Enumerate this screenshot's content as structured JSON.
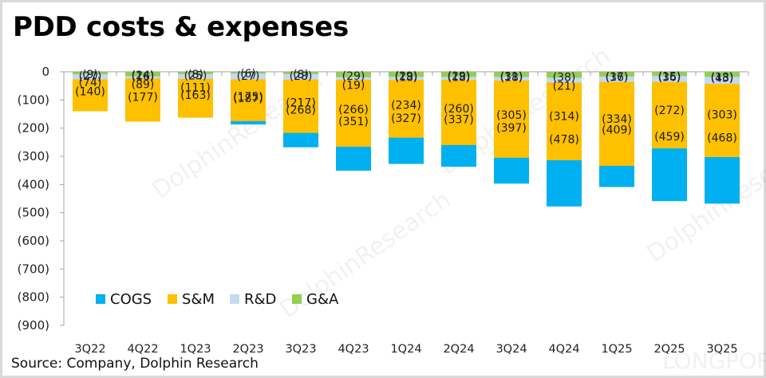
{
  "title": "PDD costs & expenses",
  "source": "Source: Company,  Dolphin Research",
  "watermarks": [
    "DolphinResearch",
    "LONGPORT"
  ],
  "chart_data": {
    "type": "bar",
    "stacked": true,
    "title": "PDD costs & expenses",
    "xlabel": "",
    "ylabel": "",
    "ylim": [
      -900,
      0
    ],
    "yticks": [
      0,
      -100,
      -200,
      -300,
      -400,
      -500,
      -600,
      -700,
      -800,
      -900
    ],
    "ytick_labels": [
      "0",
      "(100)",
      "(200)",
      "(300)",
      "(400)",
      "(500)",
      "(600)",
      "(700)",
      "(800)",
      "(900)"
    ],
    "grid": false,
    "legend_position": "bottom-left inside plot",
    "categories": [
      "3Q22",
      "4Q22",
      "1Q23",
      "2Q23",
      "3Q23",
      "4Q23",
      "1Q24",
      "2Q24",
      "3Q24",
      "4Q24",
      "1Q25",
      "2Q25",
      "3Q25"
    ],
    "series": [
      {
        "name": "COGS",
        "color": "#00b0f0",
        "values": [
          -74,
          -89,
          -111,
          -187,
          -268,
          -351,
          -327,
          -337,
          -397,
          -478,
          -409,
          -459,
          -468
        ]
      },
      {
        "name": "S&M",
        "color": "#ffc000",
        "values": [
          -140,
          -177,
          -163,
          -175,
          -217,
          -266,
          -234,
          -260,
          -305,
          -314,
          -334,
          -272,
          -303
        ]
      },
      {
        "name": "R&D",
        "color": "#c5d9f1",
        "values": [
          -27,
          -24,
          -25,
          -27,
          -28,
          -29,
          -29,
          -29,
          -31,
          -38,
          -36,
          -36,
          -43
        ]
      },
      {
        "name": "G&A",
        "color": "#92d050",
        "values": [
          -9,
          -16,
          -8,
          -6,
          -8,
          -19,
          -18,
          -18,
          -18,
          -21,
          -17,
          -15,
          -18
        ]
      }
    ],
    "data_label_format": "parentheses for negatives"
  }
}
